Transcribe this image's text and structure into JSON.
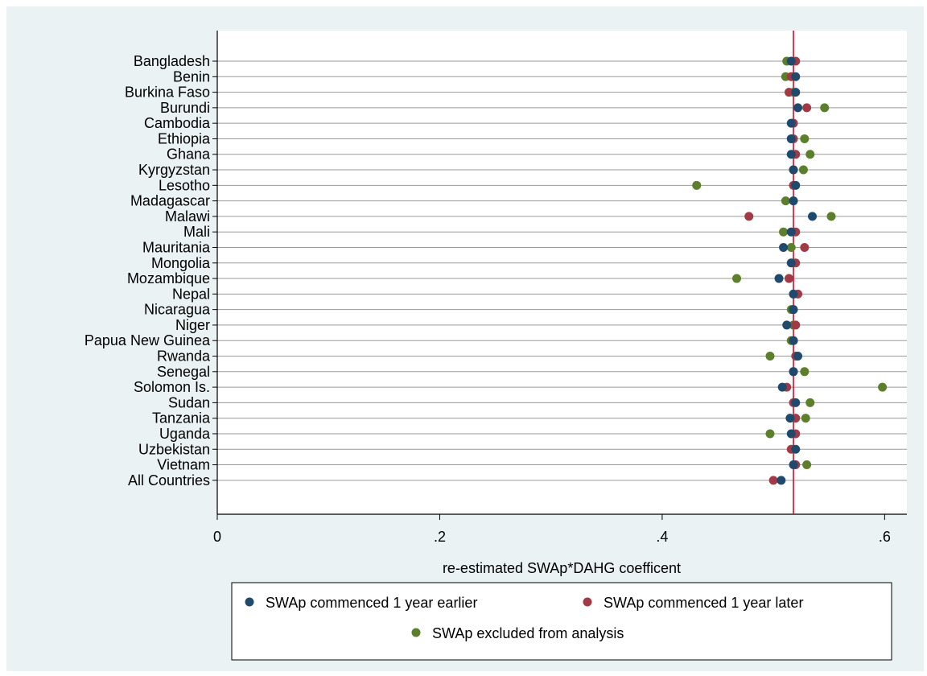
{
  "chart_data": {
    "type": "scatter",
    "title": "",
    "xlabel": "re-estimated SWAp*DAHG coefficent",
    "ylabel": "",
    "xlim": [
      0,
      0.62
    ],
    "xticks": [
      0,
      0.2,
      0.4,
      0.6
    ],
    "xtick_labels": [
      "0",
      ".2",
      ".4",
      ".6"
    ],
    "reference_line": 0.518,
    "reference_line_color": "#c8102e",
    "grid": "horizontal",
    "legend_position": "bottom",
    "categories": [
      "Bangladesh",
      "Benin",
      "Burkina Faso",
      "Burundi",
      "Cambodia",
      "Ethiopia",
      "Ghana",
      "Kyrgyzstan",
      "Lesotho",
      "Madagascar",
      "Malawi",
      "Mali",
      "Mauritania",
      "Mongolia",
      "Mozambique",
      "Nepal",
      "Nicaragua",
      "Niger",
      "Papua New Guinea",
      "Rwanda",
      "Senegal",
      "Solomon Is.",
      "Sudan",
      "Tanzania",
      "Uganda",
      "Uzbekistan",
      "Vietnam",
      "All Countries"
    ],
    "series": [
      {
        "name": "SWAp excluded from analysis",
        "color": "#5b7f2a",
        "values": [
          0.512,
          0.511,
          0.518,
          0.546,
          0.518,
          0.528,
          0.533,
          0.527,
          0.431,
          0.511,
          0.552,
          0.509,
          0.516,
          0.518,
          0.467,
          0.518,
          0.516,
          0.518,
          0.516,
          0.497,
          0.528,
          0.598,
          0.533,
          0.529,
          0.497,
          0.518,
          0.53,
          null
        ]
      },
      {
        "name": "SWAp commenced 1 year later",
        "color": "#a23a45",
        "values": [
          0.52,
          0.516,
          0.514,
          0.53,
          0.518,
          0.518,
          0.52,
          0.518,
          0.518,
          0.518,
          0.478,
          0.52,
          0.528,
          0.52,
          0.514,
          0.522,
          0.518,
          0.52,
          0.518,
          0.52,
          0.518,
          0.512,
          0.518,
          0.52,
          0.52,
          0.516,
          0.52,
          0.5
        ]
      },
      {
        "name": "SWAp commenced 1 year earlier",
        "color": "#1f4a6e",
        "values": [
          0.516,
          0.52,
          0.52,
          0.522,
          0.516,
          0.516,
          0.516,
          0.518,
          0.52,
          0.518,
          0.535,
          0.516,
          0.509,
          0.516,
          0.505,
          0.518,
          0.518,
          0.512,
          0.518,
          0.522,
          0.518,
          0.508,
          0.52,
          0.515,
          0.516,
          0.52,
          0.518,
          0.507
        ]
      }
    ]
  },
  "legend": {
    "items": [
      {
        "label": "SWAp commenced 1 year earlier",
        "color": "#1f4a6e"
      },
      {
        "label": "SWAp commenced 1 year later",
        "color": "#a23a45"
      },
      {
        "label": "SWAp excluded from analysis",
        "color": "#5b7f2a"
      }
    ]
  }
}
